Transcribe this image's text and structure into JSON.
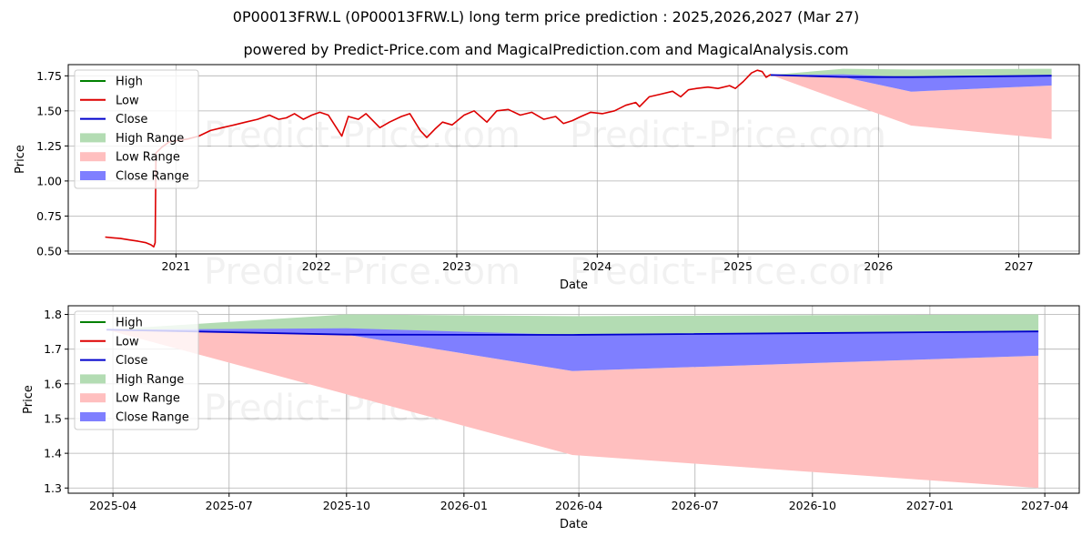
{
  "header": {
    "title": "0P00013FRW.L (0P00013FRW.L) long term price prediction : 2025,2026,2027 (Mar 27)",
    "subtitle": "powered by Predict-Price.com and MagicalPrediction.com and MagicalAnalysis.com"
  },
  "watermark": "Predict-Price.com",
  "legend": {
    "entries": [
      {
        "label": "High",
        "kind": "line",
        "color": "#008000"
      },
      {
        "label": "Low",
        "kind": "line",
        "color": "#dd0000"
      },
      {
        "label": "Close",
        "kind": "line",
        "color": "#0000cc"
      },
      {
        "label": "High Range",
        "kind": "patch",
        "color": "#b3dcb3"
      },
      {
        "label": "Low Range",
        "kind": "patch",
        "color": "#ffbfbf"
      },
      {
        "label": "Close Range",
        "kind": "patch",
        "color": "#7f7fff"
      }
    ]
  },
  "chart_data": [
    {
      "type": "line",
      "xlabel": "Date",
      "ylabel": "Price",
      "ylim": [
        0.48,
        1.83
      ],
      "xlim": [
        "2020-03-27",
        "2027-06-07"
      ],
      "xticks": [
        {
          "date": "2021-01-01",
          "label": "2021"
        },
        {
          "date": "2022-01-01",
          "label": "2022"
        },
        {
          "date": "2023-01-01",
          "label": "2023"
        },
        {
          "date": "2024-01-01",
          "label": "2024"
        },
        {
          "date": "2025-01-01",
          "label": "2025"
        },
        {
          "date": "2026-01-01",
          "label": "2026"
        },
        {
          "date": "2027-01-01",
          "label": "2027"
        }
      ],
      "yticks": [
        0.5,
        0.75,
        1.0,
        1.25,
        1.5,
        1.75
      ],
      "ytick_labels": [
        "0.50",
        "0.75",
        "1.00",
        "1.25",
        "1.50",
        "1.75"
      ],
      "grid": true,
      "legend_position": "top-left",
      "history_low": [
        [
          "2020-07-01",
          0.6
        ],
        [
          "2020-07-20",
          0.595
        ],
        [
          "2020-08-10",
          0.59
        ],
        [
          "2020-09-01",
          0.58
        ],
        [
          "2020-09-25",
          0.57
        ],
        [
          "2020-10-15",
          0.56
        ],
        [
          "2020-10-28",
          0.545
        ],
        [
          "2020-11-04",
          0.53
        ],
        [
          "2020-11-08",
          0.56
        ],
        [
          "2020-11-10",
          1.2
        ],
        [
          "2020-11-25",
          1.24
        ],
        [
          "2020-12-15",
          1.28
        ],
        [
          "2021-01-10",
          1.29
        ],
        [
          "2021-02-01",
          1.3
        ],
        [
          "2021-03-01",
          1.32
        ],
        [
          "2021-04-01",
          1.36
        ],
        [
          "2021-05-01",
          1.38
        ],
        [
          "2021-06-01",
          1.4
        ],
        [
          "2021-07-01",
          1.42
        ],
        [
          "2021-08-01",
          1.44
        ],
        [
          "2021-09-01",
          1.47
        ],
        [
          "2021-09-25",
          1.44
        ],
        [
          "2021-10-15",
          1.45
        ],
        [
          "2021-11-05",
          1.48
        ],
        [
          "2021-11-28",
          1.44
        ],
        [
          "2021-12-20",
          1.47
        ],
        [
          "2022-01-10",
          1.49
        ],
        [
          "2022-02-01",
          1.47
        ],
        [
          "2022-03-08",
          1.32
        ],
        [
          "2022-03-25",
          1.46
        ],
        [
          "2022-04-20",
          1.44
        ],
        [
          "2022-05-10",
          1.48
        ],
        [
          "2022-06-15",
          1.38
        ],
        [
          "2022-07-10",
          1.42
        ],
        [
          "2022-08-10",
          1.46
        ],
        [
          "2022-09-01",
          1.48
        ],
        [
          "2022-09-28",
          1.36
        ],
        [
          "2022-10-15",
          1.31
        ],
        [
          "2022-11-05",
          1.37
        ],
        [
          "2022-11-25",
          1.42
        ],
        [
          "2022-12-20",
          1.4
        ],
        [
          "2023-01-20",
          1.47
        ],
        [
          "2023-02-15",
          1.5
        ],
        [
          "2023-03-20",
          1.42
        ],
        [
          "2023-04-15",
          1.5
        ],
        [
          "2023-05-15",
          1.51
        ],
        [
          "2023-06-15",
          1.47
        ],
        [
          "2023-07-15",
          1.49
        ],
        [
          "2023-08-15",
          1.44
        ],
        [
          "2023-09-15",
          1.46
        ],
        [
          "2023-10-05",
          1.41
        ],
        [
          "2023-10-28",
          1.43
        ],
        [
          "2023-11-20",
          1.46
        ],
        [
          "2023-12-15",
          1.49
        ],
        [
          "2024-01-15",
          1.48
        ],
        [
          "2024-02-15",
          1.5
        ],
        [
          "2024-03-15",
          1.54
        ],
        [
          "2024-04-10",
          1.56
        ],
        [
          "2024-04-20",
          1.53
        ],
        [
          "2024-05-15",
          1.6
        ],
        [
          "2024-06-15",
          1.62
        ],
        [
          "2024-07-15",
          1.64
        ],
        [
          "2024-08-05",
          1.6
        ],
        [
          "2024-08-25",
          1.65
        ],
        [
          "2024-09-15",
          1.66
        ],
        [
          "2024-10-15",
          1.67
        ],
        [
          "2024-11-10",
          1.66
        ],
        [
          "2024-12-10",
          1.68
        ],
        [
          "2024-12-25",
          1.66
        ],
        [
          "2025-01-15",
          1.71
        ],
        [
          "2025-02-05",
          1.77
        ],
        [
          "2025-02-20",
          1.79
        ],
        [
          "2025-03-05",
          1.78
        ],
        [
          "2025-03-15",
          1.74
        ],
        [
          "2025-03-27",
          1.76
        ]
      ],
      "forecast": {
        "dates": [
          "2025-03-27",
          "2025-10-01",
          "2026-03-27",
          "2027-03-27"
        ],
        "close": [
          1.756,
          1.742,
          1.741,
          1.751
        ],
        "high_range": [
          [
            1.756,
            1.756
          ],
          [
            1.756,
            1.8
          ],
          [
            1.741,
            1.795
          ],
          [
            1.751,
            1.8
          ]
        ],
        "low_range": [
          [
            1.756,
            1.756
          ],
          [
            1.57,
            1.742
          ],
          [
            1.395,
            1.637
          ],
          [
            1.3,
            1.681
          ]
        ],
        "close_range": [
          [
            1.756,
            1.756
          ],
          [
            1.742,
            1.76
          ],
          [
            1.637,
            1.741
          ],
          [
            1.681,
            1.751
          ]
        ]
      }
    },
    {
      "type": "line",
      "xlabel": "Date",
      "ylabel": "Price",
      "ylim": [
        1.285,
        1.825
      ],
      "xlim": [
        "2025-02-25",
        "2027-04-28"
      ],
      "xticks": [
        {
          "date": "2025-04-01",
          "label": "2025-04"
        },
        {
          "date": "2025-07-01",
          "label": "2025-07"
        },
        {
          "date": "2025-10-01",
          "label": "2025-10"
        },
        {
          "date": "2026-01-01",
          "label": "2026-01"
        },
        {
          "date": "2026-04-01",
          "label": "2026-04"
        },
        {
          "date": "2026-07-01",
          "label": "2026-07"
        },
        {
          "date": "2026-10-01",
          "label": "2026-10"
        },
        {
          "date": "2027-01-01",
          "label": "2027-01"
        },
        {
          "date": "2027-04-01",
          "label": "2027-04"
        }
      ],
      "yticks": [
        1.3,
        1.4,
        1.5,
        1.6,
        1.7,
        1.8
      ],
      "ytick_labels": [
        "1.3",
        "1.4",
        "1.5",
        "1.6",
        "1.7",
        "1.8"
      ],
      "grid": true,
      "legend_position": "top-left",
      "forecast": {
        "dates": [
          "2025-03-27",
          "2025-10-01",
          "2026-03-27",
          "2027-03-27"
        ],
        "close": [
          1.756,
          1.742,
          1.741,
          1.751
        ],
        "high_range": [
          [
            1.756,
            1.756
          ],
          [
            1.756,
            1.8
          ],
          [
            1.741,
            1.795
          ],
          [
            1.751,
            1.8
          ]
        ],
        "low_range": [
          [
            1.756,
            1.756
          ],
          [
            1.57,
            1.742
          ],
          [
            1.395,
            1.637
          ],
          [
            1.3,
            1.681
          ]
        ],
        "close_range": [
          [
            1.756,
            1.756
          ],
          [
            1.742,
            1.76
          ],
          [
            1.637,
            1.741
          ],
          [
            1.681,
            1.751
          ]
        ]
      }
    }
  ]
}
